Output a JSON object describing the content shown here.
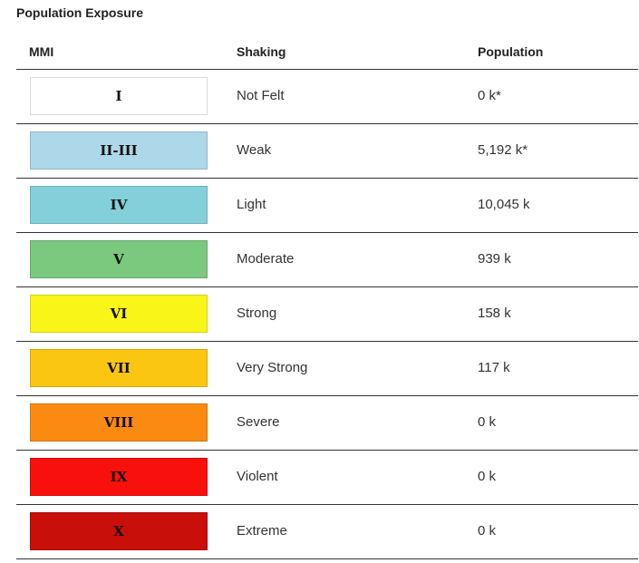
{
  "title": "Population Exposure",
  "columns": {
    "mmi": "MMI",
    "shaking": "Shaking",
    "population": "Population"
  },
  "rows": [
    {
      "mmi": "I",
      "shaking": "Not Felt",
      "population": "0 k*",
      "color": "#ffffff"
    },
    {
      "mmi": "II-III",
      "shaking": "Weak",
      "population": "5,192 k*",
      "color": "#acd8e9"
    },
    {
      "mmi": "IV",
      "shaking": "Light",
      "population": "10,045 k",
      "color": "#83d0da"
    },
    {
      "mmi": "V",
      "shaking": "Moderate",
      "population": "939 k",
      "color": "#7bc87f"
    },
    {
      "mmi": "VI",
      "shaking": "Strong",
      "population": "158 k",
      "color": "#f9f518"
    },
    {
      "mmi": "VII",
      "shaking": "Very Strong",
      "population": "117 k",
      "color": "#fac611"
    },
    {
      "mmi": "VIII",
      "shaking": "Severe",
      "population": "0 k",
      "color": "#fa8a11"
    },
    {
      "mmi": "IX",
      "shaking": "Violent",
      "population": "0 k",
      "color": "#f7100c"
    },
    {
      "mmi": "X",
      "shaking": "Extreme",
      "population": "0 k",
      "color": "#c80f0a"
    }
  ]
}
